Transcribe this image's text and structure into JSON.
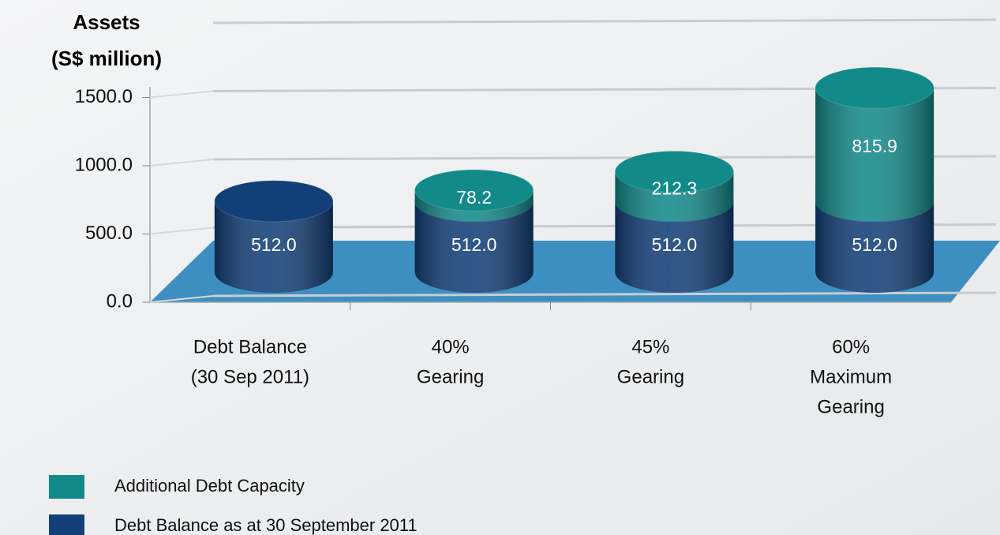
{
  "chart_data": {
    "type": "cylinder-stacked-bar",
    "ylabel": [
      "Assets",
      "(S$ million)"
    ],
    "categories": [
      [
        "Debt Balance",
        "(30 Sep 2011)"
      ],
      [
        "40%",
        "Gearing"
      ],
      [
        "45%",
        "Gearing"
      ],
      [
        "60%",
        "Maximum",
        "Gearing"
      ]
    ],
    "series": [
      {
        "name": "Additional Debt Capacity",
        "color": "#138a8a",
        "values": [
          null,
          78.2,
          212.3,
          815.9
        ]
      },
      {
        "name": "Debt Balance as at 30 September 2011",
        "color": "#123f78",
        "values": [
          512.0,
          512.0,
          512.0,
          512.0
        ],
        "value_labels": [
          "512.0",
          "512.0",
          "512.0",
          "512.0"
        ]
      }
    ],
    "ylim": [
      0,
      2000
    ],
    "yticks": [
      {
        "value": 0,
        "label": "0.0"
      },
      {
        "value": 500,
        "label": "500.0"
      },
      {
        "value": 1000,
        "label": "1000.0"
      },
      {
        "value": 1500,
        "label": "1500.0"
      }
    ],
    "grid": true
  }
}
